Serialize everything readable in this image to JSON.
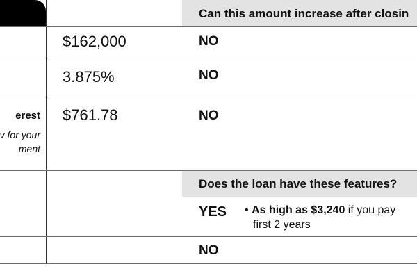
{
  "headers": {
    "increase_question": "Can this amount increase after closin",
    "features_question": "Does the loan have these features?"
  },
  "rows": [
    {
      "value": "$162,000",
      "answer": "NO"
    },
    {
      "value": "3.875%",
      "answer": "NO"
    },
    {
      "left_bold": "erest",
      "left_italic_1": "v for your",
      "left_italic_2": "ment",
      "value": "$761.78",
      "answer": "NO"
    },
    {
      "answer": "YES",
      "feature_bullet": "•",
      "feature_bold": "As high as $3,240",
      "feature_rest": " if you pay",
      "feature_line2": "first 2 years"
    },
    {
      "answer": "NO"
    }
  ]
}
